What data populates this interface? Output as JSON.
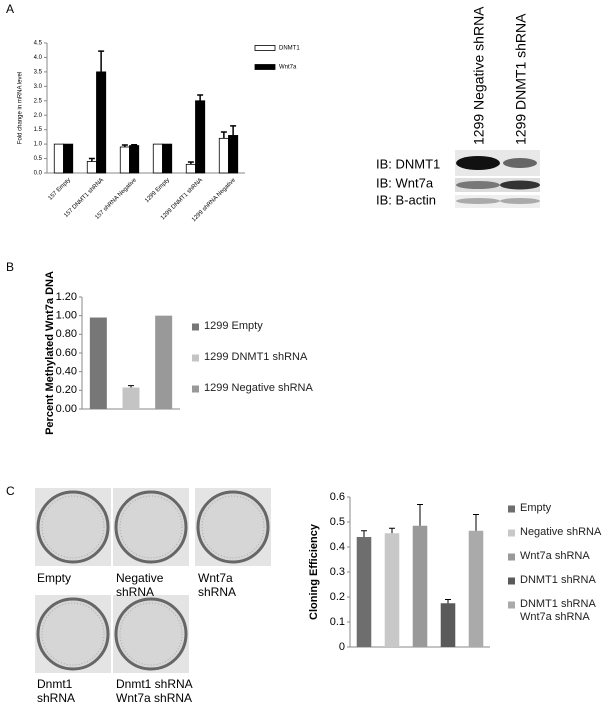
{
  "panels": [
    "A",
    "B",
    "C"
  ],
  "blot": {
    "lanes": [
      "1299 Negative shRNA",
      "1299 DNMT1 shRNA"
    ],
    "rows": [
      "IB: DNMT1",
      "IB: Wnt7a",
      "IB: B-actin"
    ]
  },
  "plates": {
    "captions": [
      "Empty",
      "Negative shRNA",
      "Wnt7a shRNA",
      "Dnmt1 shRNA",
      "Dnmt1 shRNA Wnt7a shRNA"
    ]
  },
  "chart_data": [
    {
      "type": "bar",
      "y_label": "Fold change in mRNA level",
      "categories": [
        "157 Empty",
        "157 DNMT1 shRNA",
        "157 shRNA Negative",
        "1299 Empty",
        "1299 DNMT1 shRNA",
        "1299 shRNA Negative"
      ],
      "series": [
        {
          "name": "DNMT1",
          "color": "#ffffff",
          "values": [
            1.0,
            0.4,
            0.9,
            1.0,
            0.3,
            1.2
          ],
          "errors": [
            0,
            0.1,
            0.07,
            0,
            0.08,
            0.22
          ]
        },
        {
          "name": "Wnt7a",
          "color": "#000000",
          "values": [
            1.0,
            3.5,
            0.95,
            1.0,
            2.5,
            1.3
          ],
          "errors": [
            0,
            0.72,
            0.03,
            0,
            0.2,
            0.33
          ]
        }
      ],
      "ylim": [
        0,
        4.5
      ],
      "yticks": [
        {
          "value": 0,
          "label": "0.0"
        },
        0.5,
        {
          "value": 1,
          "label": "1.0"
        },
        1.5,
        {
          "value": 2,
          "label": "2.0"
        },
        2.5,
        {
          "value": 3,
          "label": "3.0"
        },
        3.5,
        {
          "value": 4,
          "label": "4.0"
        },
        4.5
      ]
    },
    {
      "type": "bar",
      "y_label": "Percent Methylated Wnt7a DNA",
      "series": [
        {
          "name": "1299 Empty",
          "color": "#777777",
          "values": [
            0.98
          ]
        },
        {
          "name": "1299 DNMT1 shRNA",
          "color": "#c4c4c4",
          "values": [
            0.23
          ],
          "errors": [
            0.02
          ]
        },
        {
          "name": "1299 Negative shRNA",
          "color": "#999999",
          "values": [
            1.0
          ]
        }
      ],
      "ylim": [
        0,
        1.2
      ],
      "yticks": [
        {
          "value": 0,
          "label": "0.00"
        },
        {
          "value": 0.2,
          "label": "0.20"
        },
        {
          "value": 0.4,
          "label": "0.40"
        },
        {
          "value": 0.6,
          "label": "0.60"
        },
        {
          "value": 0.8,
          "label": "0.80"
        },
        {
          "value": 1,
          "label": "1.00"
        },
        {
          "value": 1.2,
          "label": "1.20"
        }
      ]
    },
    {
      "type": "bar",
      "y_label": "Cloning Efficiency",
      "series": [
        {
          "name": "Empty",
          "color": "#6e6e6e",
          "values": [
            0.44
          ],
          "errors": [
            0.025
          ]
        },
        {
          "name": "Negative shRNA",
          "color": "#c8c8c8",
          "values": [
            0.455
          ],
          "errors": [
            0.02
          ]
        },
        {
          "name": "Wnt7a shRNA",
          "color": "#999999",
          "values": [
            0.485
          ],
          "errors": [
            0.085
          ]
        },
        {
          "name": "DNMT1 shRNA",
          "color": "#5a5a5a",
          "values": [
            0.175
          ],
          "errors": [
            0.015
          ]
        },
        {
          "name": "DNMT1 shRNA Wnt7a shRNA",
          "color": "#aaaaaa",
          "values": [
            0.465
          ],
          "errors": [
            0.065
          ]
        }
      ],
      "ylim": [
        0,
        0.6
      ],
      "yticks": [
        0,
        0.1,
        0.2,
        0.3,
        0.4,
        0.5,
        0.6
      ]
    }
  ]
}
